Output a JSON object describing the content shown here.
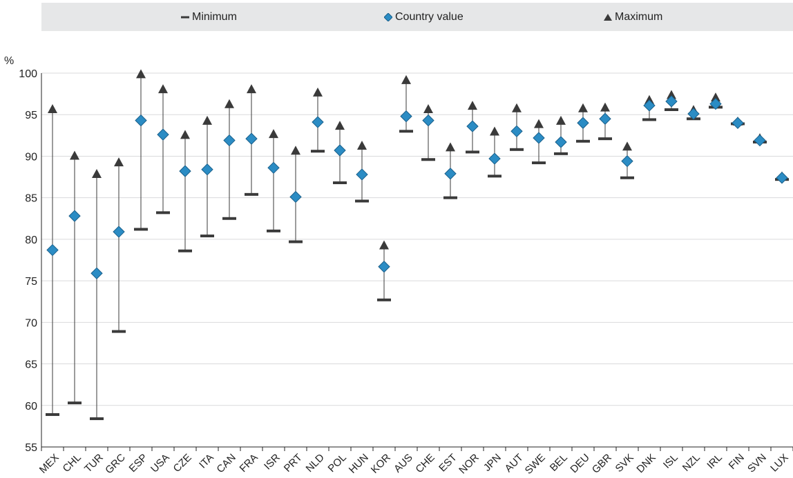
{
  "legend": {
    "min_label": "Minimum",
    "value_label": "Country value",
    "max_label": "Maximum"
  },
  "colors": {
    "diamond": "#2b8cc4",
    "marker": "#3a3a3a",
    "legend_bg": "#e6e7e8",
    "grid": "#d9dadb"
  },
  "chart_data": {
    "type": "scatter",
    "title": "",
    "xlabel": "",
    "ylabel": "%",
    "ylim": [
      55,
      100
    ],
    "yticks": [
      55,
      60,
      65,
      70,
      75,
      80,
      85,
      90,
      95,
      100
    ],
    "grid": "horizontal",
    "legend_position": "top",
    "categories": [
      "MEX",
      "CHL",
      "TUR",
      "GRC",
      "ESP",
      "USA",
      "CZE",
      "ITA",
      "CAN",
      "FRA",
      "ISR",
      "PRT",
      "NLD",
      "POL",
      "HUN",
      "KOR",
      "AUS",
      "CHE",
      "EST",
      "NOR",
      "JPN",
      "AUT",
      "SWE",
      "BEL",
      "DEU",
      "GBR",
      "SVK",
      "DNK",
      "ISL",
      "NZL",
      "IRL",
      "FIN",
      "SVN",
      "LUX"
    ],
    "series": [
      {
        "name": "Minimum",
        "values": [
          58.9,
          60.3,
          58.4,
          68.9,
          81.2,
          83.2,
          78.6,
          80.4,
          82.5,
          85.4,
          81.0,
          79.7,
          90.6,
          86.8,
          84.6,
          72.7,
          93.0,
          89.6,
          85.0,
          90.5,
          87.6,
          90.8,
          89.2,
          90.3,
          91.8,
          92.1,
          87.4,
          94.4,
          95.6,
          94.5,
          95.9,
          93.9,
          91.7,
          87.2
        ]
      },
      {
        "name": "Country value",
        "values": [
          78.7,
          82.8,
          75.9,
          80.9,
          94.3,
          92.6,
          88.2,
          88.4,
          91.9,
          92.1,
          88.6,
          85.1,
          94.1,
          90.7,
          87.8,
          76.7,
          94.8,
          94.3,
          87.9,
          93.6,
          89.7,
          93.0,
          92.2,
          91.7,
          94.0,
          94.5,
          89.4,
          96.1,
          96.6,
          95.1,
          96.3,
          94.0,
          91.9,
          87.4
        ]
      },
      {
        "name": "Maximum",
        "values": [
          95.6,
          90.0,
          87.8,
          89.2,
          99.8,
          98.0,
          92.5,
          94.2,
          96.2,
          98.0,
          92.6,
          90.6,
          97.6,
          93.6,
          91.2,
          79.2,
          99.1,
          95.6,
          91.0,
          96.0,
          92.9,
          95.7,
          93.8,
          94.2,
          95.7,
          95.8,
          91.1,
          96.7,
          97.3,
          95.5,
          97.0,
          94.1,
          92.1,
          87.5
        ]
      }
    ]
  }
}
